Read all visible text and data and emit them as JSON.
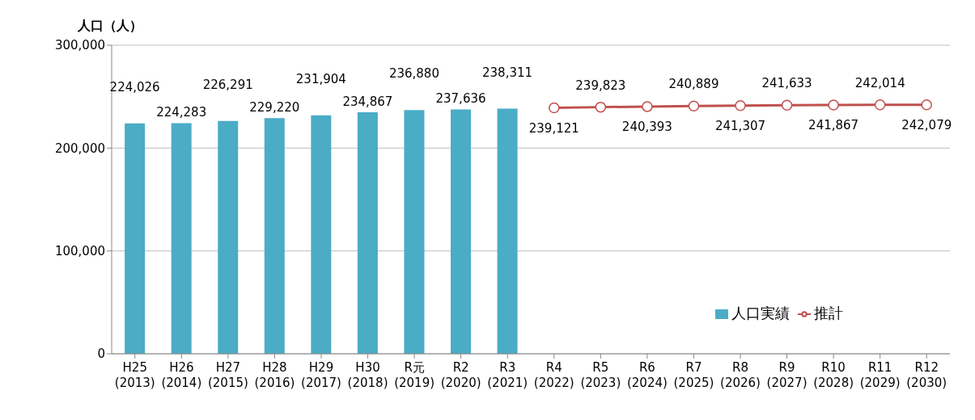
{
  "chart_data": {
    "type": "bar",
    "ylabel": "人口（人）",
    "categories": [
      "H25 (2013)",
      "H26 (2014)",
      "H27 (2015)",
      "H28 (2016)",
      "H29 (2017)",
      "H30 (2018)",
      "R元 (2019)",
      "R2 (2020)",
      "R3 (2021)",
      "R4 (2022)",
      "R5 (2023)",
      "R6 (2024)",
      "R7 (2025)",
      "R8 (2026)",
      "R9 (2027)",
      "R10 (2028)",
      "R11 (2029)",
      "R12 (2030)"
    ],
    "series": [
      {
        "name": "人口実績",
        "color": "#4bacc6",
        "values": [
          224026,
          224283,
          226291,
          229220,
          231904,
          234867,
          236880,
          237636,
          238311,
          null,
          null,
          null,
          null,
          null,
          null,
          null,
          null,
          null
        ],
        "value_labels": [
          "224,026",
          "224,283",
          "226,291",
          "229,220",
          "231,904",
          "234,867",
          "236,880",
          "237,636",
          "238,311",
          null,
          null,
          null,
          null,
          null,
          null,
          null,
          null,
          null
        ]
      },
      {
        "name": "推計",
        "type": "line",
        "color": "#c0504d",
        "marker": "circle",
        "values": [
          null,
          null,
          null,
          null,
          null,
          null,
          null,
          null,
          null,
          239121,
          239823,
          240393,
          240889,
          241307,
          241633,
          241867,
          242014,
          242079
        ],
        "value_labels": [
          null,
          null,
          null,
          null,
          null,
          null,
          null,
          null,
          null,
          "239,121",
          "239,823",
          "240,393",
          "240,889",
          "241,307",
          "241,633",
          "241,867",
          "242,014",
          "242,079"
        ]
      }
    ],
    "ylim": [
      0,
      300000
    ],
    "yticks": [
      0,
      {
        "value": 100000,
        "label": "100,000"
      },
      {
        "value": 200000,
        "label": "200,000"
      },
      {
        "value": 300000,
        "label": "300,000"
      }
    ],
    "grid": "y",
    "legend": "right"
  }
}
